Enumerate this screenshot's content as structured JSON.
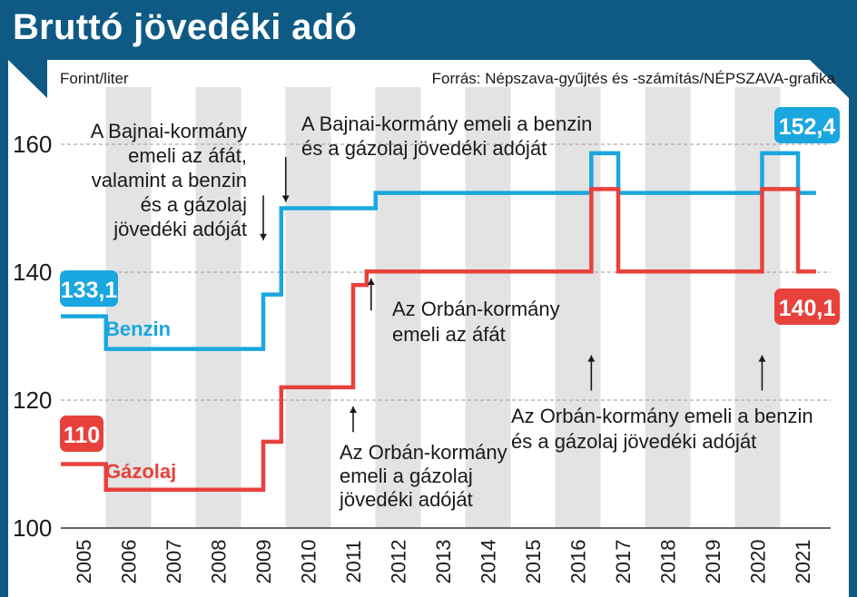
{
  "chart_data": {
    "type": "line",
    "title": "Bruttó jövedéki adó",
    "ylabel": "Forint/liter",
    "source": "Forrás: Népszava-gyűjtés és -számítás/NÉPSZAVA-grafika",
    "xlim": [
      2005,
      2021
    ],
    "ylim": [
      100,
      160
    ],
    "y_ticks": [
      100,
      120,
      140,
      160
    ],
    "x_ticks": [
      "2005",
      "2006",
      "2007",
      "2008",
      "2009",
      "2010",
      "2011",
      "2012",
      "2013",
      "2014",
      "2015",
      "2016",
      "2017",
      "2018",
      "2019",
      "2020",
      "2021"
    ],
    "grid": "dashed-horizontal",
    "step": true,
    "series": [
      {
        "name": "Benzin",
        "color": "#1aa7df",
        "start_label": "133,1",
        "end_label": "152,4",
        "points": [
          [
            2005.0,
            133.1
          ],
          [
            2005.5,
            128.0
          ],
          [
            2009.0,
            136.5
          ],
          [
            2009.4,
            150.0
          ],
          [
            2011.5,
            152.4
          ],
          [
            2016.3,
            158.6
          ],
          [
            2016.9,
            152.4
          ],
          [
            2020.1,
            158.6
          ],
          [
            2020.9,
            152.4
          ]
        ]
      },
      {
        "name": "Gázolaj",
        "color": "#e8413c",
        "start_label": "110",
        "end_label": "140,1",
        "points": [
          [
            2005.0,
            110.0
          ],
          [
            2005.5,
            106.0
          ],
          [
            2009.0,
            113.5
          ],
          [
            2009.4,
            122.0
          ],
          [
            2011.0,
            138.0
          ],
          [
            2011.3,
            140.1
          ],
          [
            2016.3,
            153.0
          ],
          [
            2016.9,
            140.1
          ],
          [
            2020.1,
            153.0
          ],
          [
            2020.9,
            140.1
          ]
        ]
      }
    ],
    "annotations": [
      {
        "text": [
          "A Bajnai-kormány",
          "emeli az áfát,",
          "valamint a benzin",
          "és a gázolaj",
          "jövedéki adóját"
        ],
        "arrows": [
          [
            2009.0,
            152.0,
            145.0
          ],
          [
            2009.5,
            158.0,
            151.0
          ]
        ]
      },
      {
        "text": [
          "A Bajnai-kormány emeli a benzin",
          "és a gázolaj jövedéki adóját"
        ],
        "arrows": []
      },
      {
        "text": [
          "Az Orbán-kormány",
          "emeli az áfát"
        ],
        "arrows": [
          [
            2011.4,
            134.0,
            139.0
          ]
        ]
      },
      {
        "text": [
          "Az Orbán-kormány",
          "emeli a gázolaj",
          "jövedéki adóját"
        ],
        "arrows": [
          [
            2011.0,
            115.0,
            119.0
          ]
        ]
      },
      {
        "text": [
          "Az Orbán-kormány emeli a benzin",
          "és a gázolaj jövedéki adóját"
        ],
        "arrows": [
          [
            2016.3,
            121.5,
            127.0
          ],
          [
            2020.1,
            121.5,
            127.0
          ]
        ]
      }
    ]
  }
}
